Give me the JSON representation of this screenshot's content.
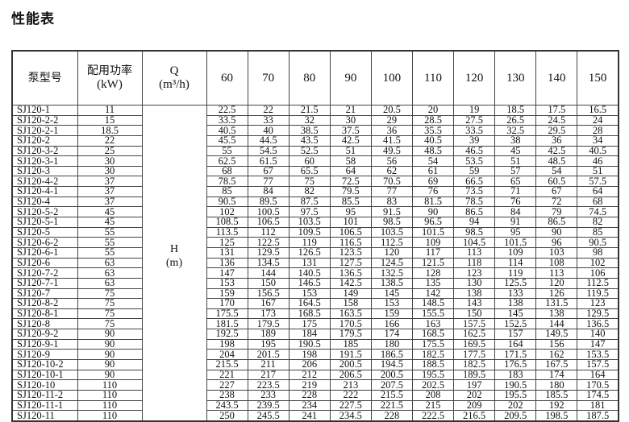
{
  "title": "性能表",
  "headers": {
    "model": "泵型号",
    "power_cn": "配用功率",
    "power_unit": "(kW)",
    "q": "Q",
    "q_unit": "(m³/h)",
    "h": "H",
    "h_unit": "(m)"
  },
  "flows": [
    "60",
    "70",
    "80",
    "90",
    "100",
    "110",
    "120",
    "130",
    "140",
    "150"
  ],
  "rows": [
    {
      "model": "SJ120-1",
      "kw": "11",
      "h": [
        "22.5",
        "22",
        "21.5",
        "21",
        "20.5",
        "20",
        "19",
        "18.5",
        "17.5",
        "16.5"
      ]
    },
    {
      "model": "SJ120-2-2",
      "kw": "15",
      "h": [
        "33.5",
        "33",
        "32",
        "30",
        "29",
        "28.5",
        "27.5",
        "26.5",
        "24.5",
        "24"
      ]
    },
    {
      "model": "SJ120-2-1",
      "kw": "18.5",
      "h": [
        "40.5",
        "40",
        "38.5",
        "37.5",
        "36",
        "35.5",
        "33.5",
        "32.5",
        "29.5",
        "28"
      ]
    },
    {
      "model": "SJ120-2",
      "kw": "22",
      "h": [
        "45.5",
        "44.5",
        "43.5",
        "42.5",
        "41.5",
        "40.5",
        "39",
        "38",
        "36",
        "34"
      ]
    },
    {
      "model": "SJ120-3-2",
      "kw": "25",
      "h": [
        "55",
        "54.5",
        "52.5",
        "51",
        "49.5",
        "48.5",
        "46.5",
        "45",
        "42.5",
        "40.5"
      ]
    },
    {
      "model": "SJ120-3-1",
      "kw": "30",
      "h": [
        "62.5",
        "61.5",
        "60",
        "58",
        "56",
        "54",
        "53.5",
        "51",
        "48.5",
        "46"
      ]
    },
    {
      "model": "SJ120-3",
      "kw": "30",
      "h": [
        "68",
        "67",
        "65.5",
        "64",
        "62",
        "61",
        "59",
        "57",
        "54",
        "51"
      ]
    },
    {
      "model": "SJ120-4-2",
      "kw": "37",
      "h": [
        "78.5",
        "77",
        "75",
        "72.5",
        "70.5",
        "69",
        "66.5",
        "65",
        "60.5",
        "57.5"
      ]
    },
    {
      "model": "SJ120-4-1",
      "kw": "37",
      "h": [
        "85",
        "84",
        "82",
        "79.5",
        "77",
        "76",
        "73.5",
        "71",
        "67",
        "64"
      ]
    },
    {
      "model": "SJ120-4",
      "kw": "37",
      "h": [
        "90.5",
        "89.5",
        "87.5",
        "85.5",
        "83",
        "81.5",
        "78.5",
        "76",
        "72",
        "68"
      ]
    },
    {
      "model": "SJ120-5-2",
      "kw": "45",
      "h": [
        "102",
        "100.5",
        "97.5",
        "95",
        "91.5",
        "90",
        "86.5",
        "84",
        "79",
        "74.5"
      ]
    },
    {
      "model": "SJ120-5-1",
      "kw": "45",
      "h": [
        "108.5",
        "106.5",
        "103.5",
        "101",
        "98.5",
        "96.5",
        "94",
        "91",
        "86.5",
        "82"
      ]
    },
    {
      "model": "SJ120-5",
      "kw": "55",
      "h": [
        "113.5",
        "112",
        "109.5",
        "106.5",
        "103.5",
        "101.5",
        "98.5",
        "95",
        "90",
        "85"
      ]
    },
    {
      "model": "SJ120-6-2",
      "kw": "55",
      "h": [
        "125",
        "122.5",
        "119",
        "116.5",
        "112.5",
        "109",
        "104.5",
        "101.5",
        "96",
        "90.5"
      ]
    },
    {
      "model": "SJ120-6-1",
      "kw": "55",
      "h": [
        "131",
        "129.5",
        "126.5",
        "123.5",
        "120",
        "117",
        "113",
        "109",
        "103",
        "98"
      ]
    },
    {
      "model": "SJ120-6",
      "kw": "63",
      "h": [
        "136",
        "134.5",
        "131",
        "127.5",
        "124.5",
        "121.5",
        "118",
        "114",
        "108",
        "102"
      ]
    },
    {
      "model": "SJ120-7-2",
      "kw": "63",
      "h": [
        "147",
        "144",
        "140.5",
        "136.5",
        "132.5",
        "128",
        "123",
        "119",
        "113",
        "106"
      ]
    },
    {
      "model": "SJ120-7-1",
      "kw": "63",
      "h": [
        "153",
        "150",
        "146.5",
        "142.5",
        "138.5",
        "135",
        "130",
        "125.5",
        "120",
        "112.5"
      ]
    },
    {
      "model": "SJ120-7",
      "kw": "75",
      "h": [
        "159",
        "156.5",
        "153",
        "149",
        "145",
        "142",
        "138",
        "133",
        "126",
        "119.5"
      ]
    },
    {
      "model": "SJ120-8-2",
      "kw": "75",
      "h": [
        "170",
        "167",
        "164.5",
        "158",
        "153",
        "148.5",
        "143",
        "138",
        "131.5",
        "123"
      ]
    },
    {
      "model": "SJ120-8-1",
      "kw": "75",
      "h": [
        "175.5",
        "173",
        "168.5",
        "163.5",
        "159",
        "155.5",
        "150",
        "145",
        "138",
        "129.5"
      ]
    },
    {
      "model": "SJ120-8",
      "kw": "75",
      "h": [
        "181.5",
        "179.5",
        "175",
        "170.5",
        "166",
        "163",
        "157.5",
        "152.5",
        "144",
        "136.5"
      ]
    },
    {
      "model": "SJ120-9-2",
      "kw": "90",
      "h": [
        "192.5",
        "189",
        "184",
        "179.5",
        "174",
        "168.5",
        "162.5",
        "157",
        "149.5",
        "140"
      ]
    },
    {
      "model": "SJ120-9-1",
      "kw": "90",
      "h": [
        "198",
        "195",
        "190.5",
        "185",
        "180",
        "175.5",
        "169.5",
        "164",
        "156",
        "147"
      ]
    },
    {
      "model": "SJ120-9",
      "kw": "90",
      "h": [
        "204",
        "201.5",
        "198",
        "191.5",
        "186.5",
        "182.5",
        "177.5",
        "171.5",
        "162",
        "153.5"
      ]
    },
    {
      "model": "SJ120-10-2",
      "kw": "90",
      "h": [
        "215.5",
        "211",
        "206",
        "200.5",
        "194.5",
        "188.5",
        "182.5",
        "176.5",
        "167.5",
        "157.5"
      ]
    },
    {
      "model": "SJ120-10-1",
      "kw": "90",
      "h": [
        "221",
        "217",
        "212",
        "206.5",
        "200.5",
        "195.5",
        "189.5",
        "183",
        "174",
        "164"
      ]
    },
    {
      "model": "SJ120-10",
      "kw": "110",
      "h": [
        "227",
        "223.5",
        "219",
        "213",
        "207.5",
        "202.5",
        "197",
        "190.5",
        "180",
        "170.5"
      ]
    },
    {
      "model": "SJ120-11-2",
      "kw": "110",
      "h": [
        "238",
        "233",
        "228",
        "222",
        "215.5",
        "208",
        "202",
        "195.5",
        "185.5",
        "174.5"
      ]
    },
    {
      "model": "SJ120-11-1",
      "kw": "110",
      "h": [
        "243.5",
        "239.5",
        "234",
        "227.5",
        "221.5",
        "215",
        "209",
        "202",
        "192",
        "181"
      ]
    },
    {
      "model": "SJ120-11",
      "kw": "110",
      "h": [
        "250",
        "245.5",
        "241",
        "234.5",
        "228",
        "222.5",
        "216.5",
        "209.5",
        "198.5",
        "187.5"
      ]
    }
  ]
}
